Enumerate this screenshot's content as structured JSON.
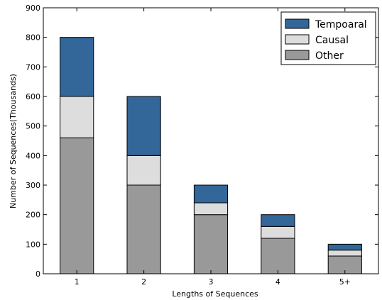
{
  "chart_data": {
    "type": "bar",
    "stacked": true,
    "categories": [
      "1",
      "2",
      "3",
      "4",
      "5+"
    ],
    "series": [
      {
        "name": "Other",
        "values": [
          460,
          300,
          200,
          120,
          60
        ],
        "color": "#999999"
      },
      {
        "name": "Causal",
        "values": [
          140,
          100,
          40,
          40,
          20
        ],
        "color": "#dddddd"
      },
      {
        "name": "Tempoaral",
        "values": [
          200,
          200,
          60,
          40,
          20
        ],
        "color": "#336699"
      }
    ],
    "legend_order": [
      "Tempoaral",
      "Causal",
      "Other"
    ],
    "legend_position": "top-right",
    "xlabel": "Lengths of Sequences",
    "ylabel": "Number of Sequences(Thousands)",
    "ylim": [
      0,
      900
    ],
    "yticks": [
      0,
      100,
      200,
      300,
      400,
      500,
      600,
      700,
      800,
      900
    ],
    "grid": false
  }
}
